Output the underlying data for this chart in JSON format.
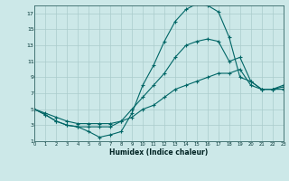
{
  "xlabel": "Humidex (Indice chaleur)",
  "bg_color": "#cce8e8",
  "grid_color": "#aacccc",
  "line_color": "#006666",
  "xlim": [
    0,
    23
  ],
  "ylim": [
    1,
    18
  ],
  "xticks": [
    0,
    1,
    2,
    3,
    4,
    5,
    6,
    7,
    8,
    9,
    10,
    11,
    12,
    13,
    14,
    15,
    16,
    17,
    18,
    19,
    20,
    21,
    22,
    23
  ],
  "yticks": [
    1,
    3,
    5,
    7,
    9,
    11,
    13,
    15,
    17
  ],
  "line1_x": [
    0,
    1,
    2,
    3,
    4,
    5,
    6,
    7,
    8,
    9,
    10,
    11,
    12,
    13,
    14,
    15,
    16,
    17,
    18,
    19,
    20,
    21,
    22,
    23
  ],
  "line1_y": [
    5,
    4.3,
    3.5,
    3.0,
    2.8,
    2.2,
    1.5,
    1.8,
    2.2,
    4.5,
    8.0,
    10.5,
    13.5,
    16.0,
    17.5,
    18.2,
    18.0,
    17.2,
    14.0,
    9.0,
    8.5,
    7.5,
    7.5,
    7.5
  ],
  "line2_x": [
    0,
    1,
    2,
    3,
    4,
    5,
    6,
    7,
    8,
    9,
    10,
    11,
    12,
    13,
    14,
    15,
    16,
    17,
    18,
    19,
    20,
    21,
    22,
    23
  ],
  "line2_y": [
    5,
    4.3,
    3.5,
    3.0,
    2.8,
    2.8,
    2.8,
    2.8,
    3.5,
    5.0,
    6.5,
    8.0,
    9.5,
    11.5,
    13.0,
    13.5,
    13.8,
    13.5,
    11.0,
    11.5,
    8.5,
    7.5,
    7.5,
    7.8
  ],
  "line3_x": [
    0,
    1,
    2,
    3,
    4,
    5,
    6,
    7,
    8,
    9,
    10,
    11,
    12,
    13,
    14,
    15,
    16,
    17,
    18,
    19,
    20,
    21,
    22,
    23
  ],
  "line3_y": [
    5,
    4.5,
    4.0,
    3.5,
    3.2,
    3.2,
    3.2,
    3.2,
    3.5,
    4.0,
    5.0,
    5.5,
    6.5,
    7.5,
    8.0,
    8.5,
    9.0,
    9.5,
    9.5,
    10.0,
    8.0,
    7.5,
    7.5,
    8.0
  ]
}
